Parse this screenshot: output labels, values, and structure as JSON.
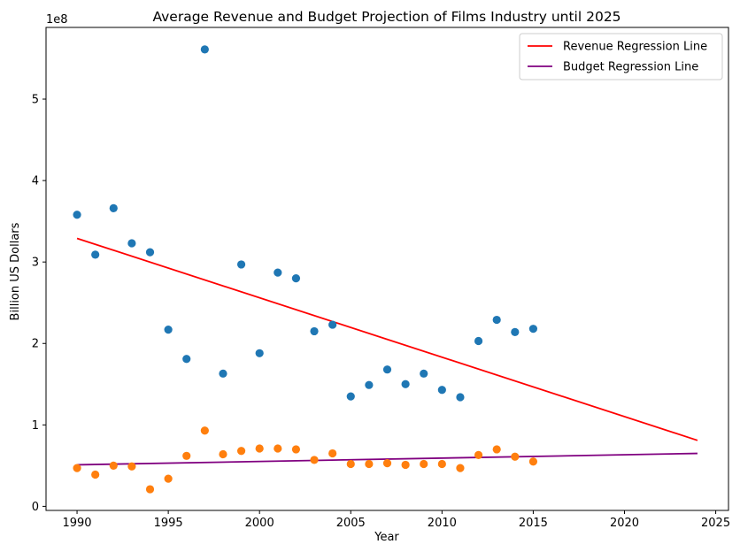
{
  "chart_data": {
    "type": "scatter",
    "title": "Average Revenue and Budget Projection of Films Industry until 2025",
    "xlabel": "Year",
    "ylabel": "Billion US Dollars",
    "y_offset_label": "1e8",
    "xlim": [
      1988.3,
      2025.7
    ],
    "ylim": [
      -0.05,
      5.88
    ],
    "x_ticks": [
      1990,
      1995,
      2000,
      2005,
      2010,
      2015,
      2020,
      2025
    ],
    "y_ticks": [
      0,
      1,
      2,
      3,
      4,
      5
    ],
    "grid": false,
    "legend_position": "top-right",
    "scatter_series": [
      {
        "color": "#1f77b4",
        "points": [
          [
            1990,
            3.58
          ],
          [
            1991,
            3.09
          ],
          [
            1992,
            3.66
          ],
          [
            1993,
            3.23
          ],
          [
            1994,
            3.12
          ],
          [
            1995,
            2.17
          ],
          [
            1996,
            1.81
          ],
          [
            1997,
            5.61
          ],
          [
            1998,
            1.63
          ],
          [
            1999,
            2.97
          ],
          [
            2000,
            1.88
          ],
          [
            2001,
            2.87
          ],
          [
            2002,
            2.8
          ],
          [
            2003,
            2.15
          ],
          [
            2004,
            2.23
          ],
          [
            2005,
            1.35
          ],
          [
            2006,
            1.49
          ],
          [
            2007,
            1.68
          ],
          [
            2008,
            1.5
          ],
          [
            2009,
            1.63
          ],
          [
            2010,
            1.43
          ],
          [
            2011,
            1.34
          ],
          [
            2012,
            2.03
          ],
          [
            2013,
            2.29
          ],
          [
            2014,
            2.14
          ],
          [
            2015,
            2.18
          ]
        ]
      },
      {
        "color": "#ff7f0e",
        "points": [
          [
            1990,
            0.47
          ],
          [
            1991,
            0.39
          ],
          [
            1992,
            0.5
          ],
          [
            1993,
            0.49
          ],
          [
            1994,
            0.21
          ],
          [
            1995,
            0.34
          ],
          [
            1996,
            0.62
          ],
          [
            1997,
            0.93
          ],
          [
            1998,
            0.64
          ],
          [
            1999,
            0.68
          ],
          [
            2000,
            0.71
          ],
          [
            2001,
            0.71
          ],
          [
            2002,
            0.7
          ],
          [
            2003,
            0.57
          ],
          [
            2004,
            0.65
          ],
          [
            2005,
            0.52
          ],
          [
            2006,
            0.52
          ],
          [
            2007,
            0.53
          ],
          [
            2008,
            0.51
          ],
          [
            2009,
            0.52
          ],
          [
            2010,
            0.52
          ],
          [
            2011,
            0.47
          ],
          [
            2012,
            0.63
          ],
          [
            2013,
            0.7
          ],
          [
            2014,
            0.61
          ],
          [
            2015,
            0.55
          ]
        ]
      }
    ],
    "line_series": [
      {
        "name": "Revenue Regression Line",
        "color": "#ff0000",
        "x": [
          1990,
          2024
        ],
        "y": [
          3.29,
          0.81
        ]
      },
      {
        "name": "Budget Regression Line",
        "color": "#800080",
        "x": [
          1990,
          2024
        ],
        "y": [
          0.51,
          0.65
        ]
      }
    ]
  }
}
